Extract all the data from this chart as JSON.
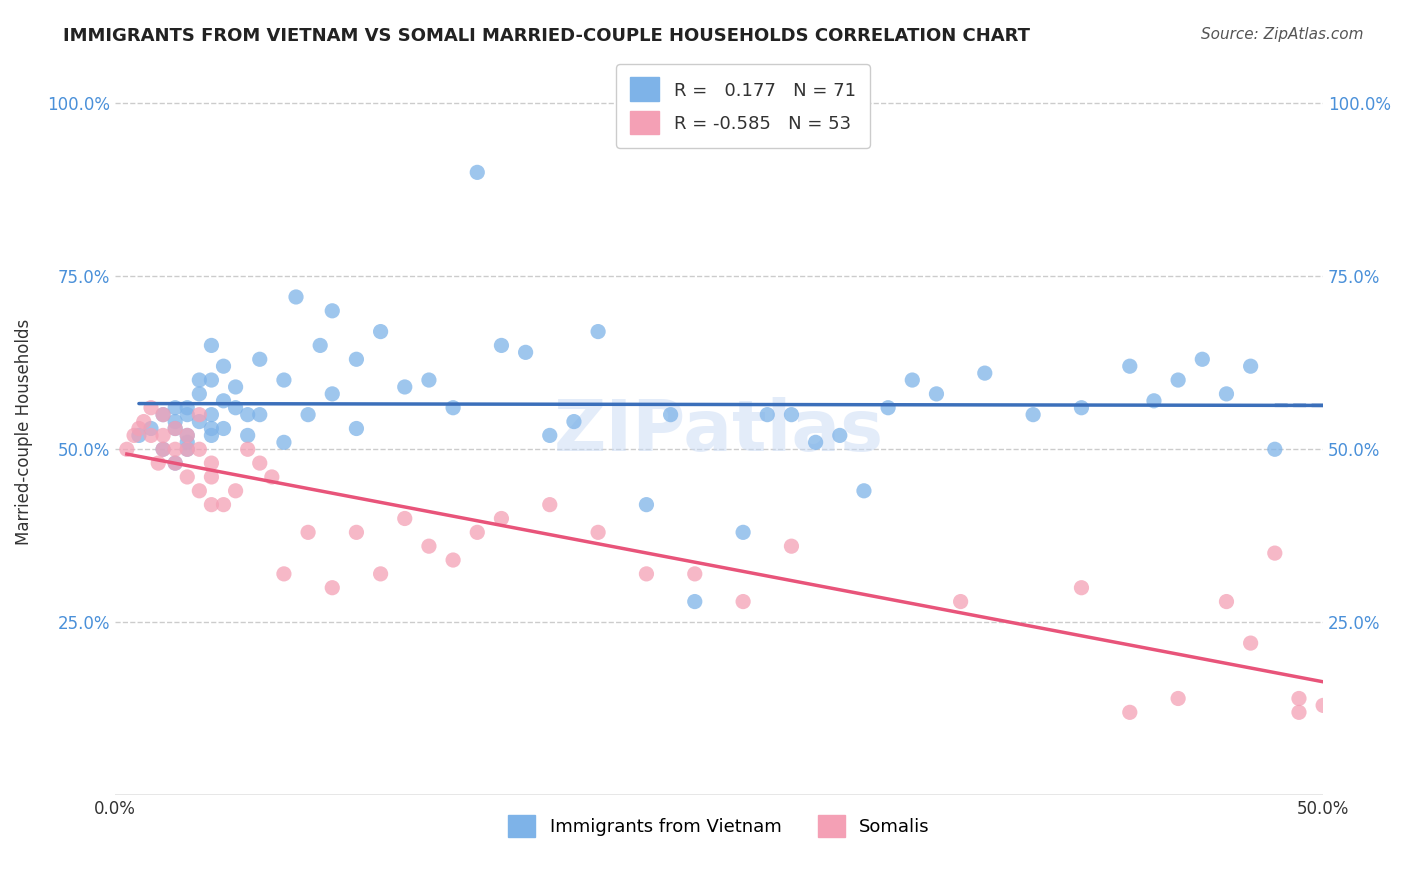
{
  "title": "IMMIGRANTS FROM VIETNAM VS SOMALI MARRIED-COUPLE HOUSEHOLDS CORRELATION CHART",
  "source": "Source: ZipAtlas.com",
  "xlabel": "",
  "ylabel": "Married-couple Households",
  "xlim": [
    0.0,
    0.5
  ],
  "ylim": [
    0.0,
    1.05
  ],
  "ytick_labels": [
    "",
    "25.0%",
    "50.0%",
    "75.0%",
    "100.0%"
  ],
  "ytick_vals": [
    0.0,
    0.25,
    0.5,
    0.75,
    1.0
  ],
  "xtick_labels": [
    "0.0%",
    "",
    "",
    "",
    "",
    "50.0%"
  ],
  "xtick_vals": [
    0.0,
    0.1,
    0.2,
    0.3,
    0.4,
    0.5
  ],
  "blue_R": 0.177,
  "blue_N": 71,
  "pink_R": -0.585,
  "pink_N": 53,
  "blue_color": "#7eb3e8",
  "pink_color": "#f4a0b5",
  "blue_line_color": "#3b6fba",
  "pink_line_color": "#e8547a",
  "watermark": "ZIPatlas",
  "blue_scatter_x": [
    0.01,
    0.015,
    0.02,
    0.02,
    0.025,
    0.025,
    0.025,
    0.025,
    0.03,
    0.03,
    0.03,
    0.03,
    0.03,
    0.035,
    0.035,
    0.035,
    0.04,
    0.04,
    0.04,
    0.04,
    0.04,
    0.045,
    0.045,
    0.045,
    0.05,
    0.05,
    0.055,
    0.055,
    0.06,
    0.06,
    0.07,
    0.07,
    0.075,
    0.08,
    0.085,
    0.09,
    0.09,
    0.1,
    0.1,
    0.11,
    0.12,
    0.13,
    0.14,
    0.15,
    0.16,
    0.17,
    0.18,
    0.19,
    0.2,
    0.22,
    0.23,
    0.24,
    0.26,
    0.27,
    0.28,
    0.29,
    0.3,
    0.31,
    0.32,
    0.33,
    0.34,
    0.36,
    0.38,
    0.4,
    0.42,
    0.43,
    0.44,
    0.45,
    0.46,
    0.47,
    0.48
  ],
  "blue_scatter_y": [
    0.52,
    0.53,
    0.5,
    0.55,
    0.53,
    0.54,
    0.56,
    0.48,
    0.52,
    0.51,
    0.56,
    0.5,
    0.55,
    0.54,
    0.58,
    0.6,
    0.52,
    0.53,
    0.55,
    0.6,
    0.65,
    0.53,
    0.57,
    0.62,
    0.56,
    0.59,
    0.52,
    0.55,
    0.55,
    0.63,
    0.51,
    0.6,
    0.72,
    0.55,
    0.65,
    0.58,
    0.7,
    0.53,
    0.63,
    0.67,
    0.59,
    0.6,
    0.56,
    0.9,
    0.65,
    0.64,
    0.52,
    0.54,
    0.67,
    0.42,
    0.55,
    0.28,
    0.38,
    0.55,
    0.55,
    0.51,
    0.52,
    0.44,
    0.56,
    0.6,
    0.58,
    0.61,
    0.55,
    0.56,
    0.62,
    0.57,
    0.6,
    0.63,
    0.58,
    0.62,
    0.5
  ],
  "pink_scatter_x": [
    0.005,
    0.008,
    0.01,
    0.012,
    0.015,
    0.015,
    0.018,
    0.02,
    0.02,
    0.02,
    0.025,
    0.025,
    0.025,
    0.03,
    0.03,
    0.03,
    0.035,
    0.035,
    0.035,
    0.04,
    0.04,
    0.04,
    0.045,
    0.05,
    0.055,
    0.06,
    0.065,
    0.07,
    0.08,
    0.09,
    0.1,
    0.11,
    0.12,
    0.13,
    0.14,
    0.15,
    0.16,
    0.18,
    0.2,
    0.22,
    0.24,
    0.26,
    0.28,
    0.35,
    0.4,
    0.42,
    0.44,
    0.46,
    0.47,
    0.48,
    0.49,
    0.49,
    0.5
  ],
  "pink_scatter_y": [
    0.5,
    0.52,
    0.53,
    0.54,
    0.56,
    0.52,
    0.48,
    0.55,
    0.5,
    0.52,
    0.5,
    0.53,
    0.48,
    0.46,
    0.5,
    0.52,
    0.5,
    0.44,
    0.55,
    0.48,
    0.42,
    0.46,
    0.42,
    0.44,
    0.5,
    0.48,
    0.46,
    0.32,
    0.38,
    0.3,
    0.38,
    0.32,
    0.4,
    0.36,
    0.34,
    0.38,
    0.4,
    0.42,
    0.38,
    0.32,
    0.32,
    0.28,
    0.36,
    0.28,
    0.3,
    0.12,
    0.14,
    0.28,
    0.22,
    0.35,
    0.12,
    0.14,
    0.13
  ]
}
